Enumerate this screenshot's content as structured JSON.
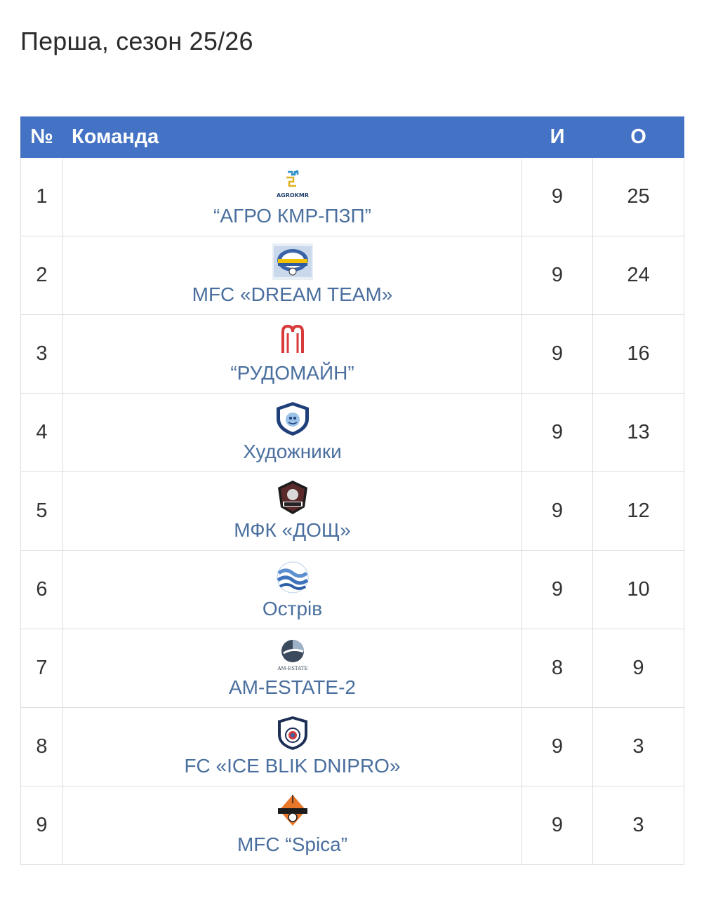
{
  "page": {
    "title": "Перша, сезон 25/26"
  },
  "table": {
    "headers": {
      "num": "№",
      "team": "Команда",
      "games": "И",
      "points": "О"
    },
    "rows": [
      {
        "pos": "1",
        "team": "“АГРО КМР-ПЗП”",
        "games": "9",
        "points": "25",
        "logo": "agrokmr-logo",
        "logo_text": "AGROKMR"
      },
      {
        "pos": "2",
        "team": "MFC «DREAM TEAM»",
        "games": "9",
        "points": "24",
        "logo": "dream-team-logo"
      },
      {
        "pos": "3",
        "team": "“РУДОМАЙН”",
        "games": "9",
        "points": "16",
        "logo": "rudomain-logo"
      },
      {
        "pos": "4",
        "team": "Художники",
        "games": "9",
        "points": "13",
        "logo": "khudozhnyky-logo"
      },
      {
        "pos": "5",
        "team": "МФК «ДОЩ»",
        "games": "9",
        "points": "12",
        "logo": "doshch-logo"
      },
      {
        "pos": "6",
        "team": "Острів",
        "games": "9",
        "points": "10",
        "logo": "ostriv-logo"
      },
      {
        "pos": "7",
        "team": "AM-ESTATE-2",
        "games": "8",
        "points": "9",
        "logo": "am-estate-logo",
        "logo_text": "AM-ESTATE"
      },
      {
        "pos": "8",
        "team": "FC «ICE BLIK DNIPRO»",
        "games": "9",
        "points": "3",
        "logo": "ice-blik-logo"
      },
      {
        "pos": "9",
        "team": "MFC “Spica”",
        "games": "9",
        "points": "3",
        "logo": "spica-logo"
      }
    ]
  },
  "colors": {
    "header_bg": "#4472c4",
    "link": "#4a6f9e",
    "border": "#dddddd"
  }
}
